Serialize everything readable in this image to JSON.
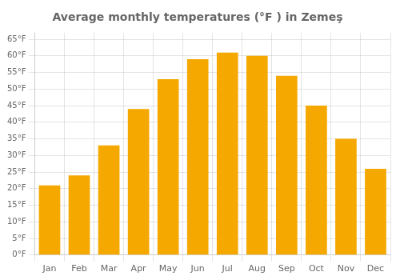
{
  "chart_data": {
    "type": "bar",
    "title": "Average monthly temperatures (°F ) in Zemeş",
    "categories": [
      "Jan",
      "Feb",
      "Mar",
      "Apr",
      "May",
      "Jun",
      "Jul",
      "Aug",
      "Sep",
      "Oct",
      "Nov",
      "Dec"
    ],
    "values": [
      21,
      24,
      33,
      44,
      53,
      59,
      61,
      60,
      54,
      45,
      35,
      26
    ],
    "color": "#F5A800",
    "ylim": [
      0,
      67
    ],
    "yticks": [
      {
        "value": 0,
        "label": "0°F"
      },
      {
        "value": 5,
        "label": "5°F"
      },
      {
        "value": 10,
        "label": "10°F"
      },
      {
        "value": 15,
        "label": "15°F"
      },
      {
        "value": 20,
        "label": "20°F"
      },
      {
        "value": 25,
        "label": "25°F"
      },
      {
        "value": 30,
        "label": "30°F"
      },
      {
        "value": 35,
        "label": "35°F"
      },
      {
        "value": 40,
        "label": "40°F"
      },
      {
        "value": 45,
        "label": "45°F"
      },
      {
        "value": 50,
        "label": "50°F"
      },
      {
        "value": 55,
        "label": "55°F"
      },
      {
        "value": 60,
        "label": "60°F"
      },
      {
        "value": 65,
        "label": "65°F"
      }
    ],
    "grid": true
  }
}
